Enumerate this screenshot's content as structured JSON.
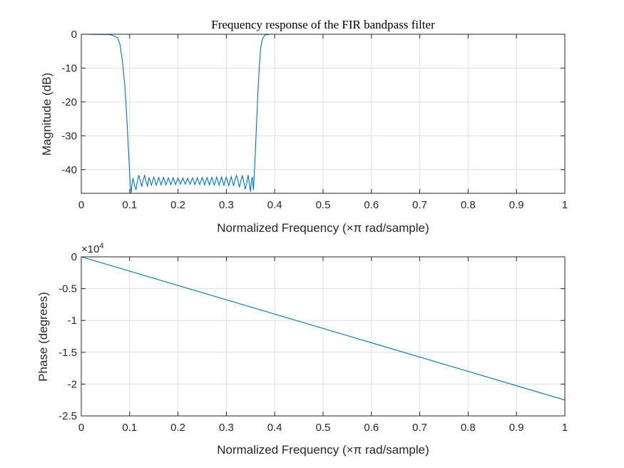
{
  "figure_title": "Frequency response of the FIR bandpass filter",
  "chart_data": [
    {
      "type": "line",
      "title": "Frequency response of the FIR bandpass filter",
      "xlabel": "Normalized Frequency  (×π rad/sample)",
      "ylabel": "Magnitude (dB)",
      "xlim": [
        0,
        1
      ],
      "ylim": [
        -47,
        0
      ],
      "x_ticks": [
        0,
        0.1,
        0.2,
        0.3,
        0.4,
        0.5,
        0.6,
        0.7,
        0.8,
        0.9,
        1
      ],
      "x_tick_labels": [
        "0",
        "0.1",
        "0.2",
        "0.3",
        "0.4",
        "0.5",
        "0.6",
        "0.7",
        "0.8",
        "0.9",
        "1"
      ],
      "y_ticks": [
        0,
        -10,
        -20,
        -30,
        -40
      ],
      "y_tick_labels": [
        "0",
        "-10",
        "-20",
        "-30",
        "-40"
      ],
      "grid": true,
      "series": [
        {
          "color": "#0072bd",
          "x": [
            0,
            0.06,
            0.075,
            0.08,
            0.085,
            0.09,
            0.093,
            0.096,
            0.099,
            0.101,
            0.103,
            0.105,
            0.107,
            0.11,
            0.113,
            0.116,
            0.119,
            0.122,
            0.125,
            0.128,
            0.131,
            0.134,
            0.137,
            0.14,
            0.145,
            0.15,
            0.155,
            0.16,
            0.165,
            0.17,
            0.175,
            0.18,
            0.185,
            0.19,
            0.195,
            0.2,
            0.205,
            0.21,
            0.215,
            0.22,
            0.225,
            0.23,
            0.235,
            0.24,
            0.245,
            0.25,
            0.255,
            0.26,
            0.265,
            0.27,
            0.275,
            0.28,
            0.285,
            0.29,
            0.295,
            0.3,
            0.305,
            0.31,
            0.315,
            0.318,
            0.321,
            0.324,
            0.327,
            0.33,
            0.333,
            0.336,
            0.339,
            0.342,
            0.345,
            0.348,
            0.35,
            0.352,
            0.354,
            0.356,
            0.359,
            0.362,
            0.365,
            0.368,
            0.371,
            0.375,
            0.38,
            0.39,
            0.4,
            0.5,
            0.6,
            0.7,
            0.8,
            0.9,
            1
          ],
          "values": [
            0,
            -0.1,
            -1,
            -3,
            -8,
            -15,
            -22,
            -30,
            -38,
            -44,
            -47,
            -44,
            -42.5,
            -44.5,
            -46,
            -43.5,
            -41.6,
            -43.3,
            -45,
            -43,
            -41.7,
            -43.6,
            -44.8,
            -42.3,
            -44.6,
            -42.2,
            -44.6,
            -42.3,
            -44.5,
            -42.3,
            -44.5,
            -42.4,
            -44.4,
            -42.4,
            -44.4,
            -42.5,
            -44.3,
            -42.5,
            -44.3,
            -42.5,
            -44.3,
            -42.4,
            -44.4,
            -42.4,
            -44.4,
            -42.3,
            -44.5,
            -42.3,
            -44.5,
            -42.3,
            -44.6,
            -42.2,
            -44.6,
            -42.2,
            -44.6,
            -42.2,
            -44.7,
            -42.1,
            -44.8,
            -43.0,
            -41.7,
            -43.2,
            -45.2,
            -43.3,
            -41.8,
            -43.6,
            -45.8,
            -44,
            -41.6,
            -44.5,
            -46.5,
            -43,
            -42.2,
            -46,
            -38,
            -28,
            -18,
            -10,
            -4,
            -1.2,
            -0.2,
            0,
            0,
            0,
            0,
            0,
            0,
            0,
            0
          ]
        }
      ]
    },
    {
      "type": "line",
      "xlabel": "Normalized Frequency  (×π rad/sample)",
      "ylabel": "Phase (degrees)",
      "multiplier_label": "×10",
      "multiplier_exponent": "4",
      "xlim": [
        0,
        1
      ],
      "ylim": [
        -2.5,
        0
      ],
      "x_ticks": [
        0,
        0.1,
        0.2,
        0.3,
        0.4,
        0.5,
        0.6,
        0.7,
        0.8,
        0.9,
        1
      ],
      "x_tick_labels": [
        "0",
        "0.1",
        "0.2",
        "0.3",
        "0.4",
        "0.5",
        "0.6",
        "0.7",
        "0.8",
        "0.9",
        "1"
      ],
      "y_ticks": [
        0,
        -0.5,
        -1,
        -1.5,
        -2,
        -2.5
      ],
      "y_tick_labels": [
        "0",
        "-0.5",
        "-1",
        "-1.5",
        "-2",
        "-2.5"
      ],
      "grid": true,
      "series": [
        {
          "color": "#0072bd",
          "x": [
            0,
            1
          ],
          "values": [
            0,
            -2.25
          ]
        }
      ]
    }
  ]
}
